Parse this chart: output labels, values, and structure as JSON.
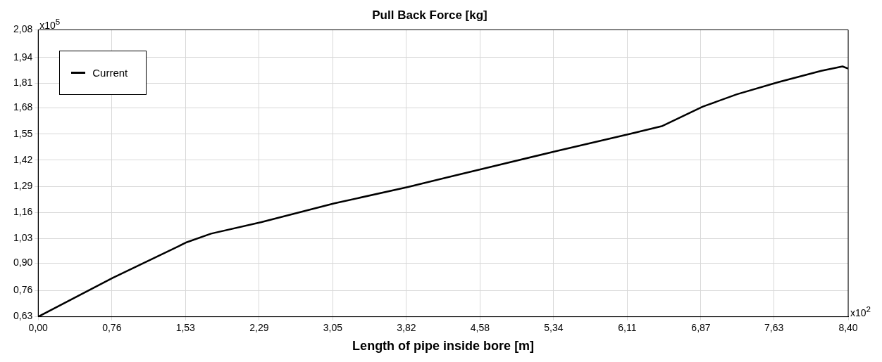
{
  "chart_data": {
    "type": "line",
    "title": "Pull Back Force [kg]",
    "xlabel": "Length of pipe inside bore [m]",
    "annotations": [
      "x10$^{5}$",
      "x10$^{2}$"
    ],
    "xlim": [
      0,
      8.4
    ],
    "xticks": [
      {
        "value": 0,
        "label": "0,00"
      },
      {
        "value": 0.764,
        "label": "0,76"
      },
      {
        "value": 1.527,
        "label": "1,53"
      },
      {
        "value": 2.291,
        "label": "2,29"
      },
      {
        "value": 3.055,
        "label": "3,05"
      },
      {
        "value": 3.818,
        "label": "3,82"
      },
      {
        "value": 4.582,
        "label": "4,58"
      },
      {
        "value": 5.345,
        "label": "5,34"
      },
      {
        "value": 6.109,
        "label": "6,11"
      },
      {
        "value": 6.873,
        "label": "6,87"
      },
      {
        "value": 7.63,
        "label": "7,63"
      },
      {
        "value": 8.4,
        "label": "8,40"
      }
    ],
    "ylim": [
      0.63,
      2.08
    ],
    "yticks": [
      {
        "value": 0.63,
        "label": "0,63"
      },
      {
        "value": 0.762,
        "label": "0,76"
      },
      {
        "value": 0.9,
        "label": "0,90"
      },
      {
        "value": 1.025,
        "label": "1,03"
      },
      {
        "value": 1.157,
        "label": "1,16"
      },
      {
        "value": 1.289,
        "label": "1,29"
      },
      {
        "value": 1.421,
        "label": "1,42"
      },
      {
        "value": 1.553,
        "label": "1,55"
      },
      {
        "value": 1.685,
        "label": "1,68"
      },
      {
        "value": 1.81,
        "label": "1,81"
      },
      {
        "value": 1.94,
        "label": "1,94"
      },
      {
        "value": 2.08,
        "label": "2,08"
      }
    ],
    "grid": true,
    "legend": "top left",
    "marker": "none",
    "line_style": "solid",
    "series": [
      {
        "name": "Current",
        "color": "#000000",
        "x": [
          0,
          0.772,
          1.543,
          1.793,
          2.315,
          3.072,
          3.836,
          4.358,
          4.608,
          5.372,
          6.136,
          6.474,
          6.893,
          7.246,
          7.672,
          8.121,
          8.341,
          8.4
        ],
        "values": [
          0.63,
          0.826,
          1.007,
          1.05,
          1.108,
          1.203,
          1.286,
          1.348,
          1.377,
          1.467,
          1.554,
          1.594,
          1.692,
          1.754,
          1.815,
          1.873,
          1.895,
          1.884
        ]
      }
    ]
  }
}
